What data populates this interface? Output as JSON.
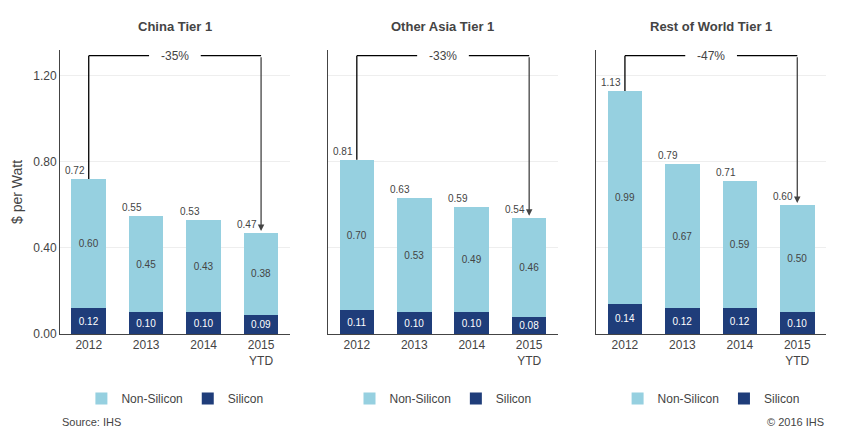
{
  "chart_data": [
    {
      "type": "bar",
      "title": "China Tier 1",
      "ylabel": "$ per Watt",
      "categories": [
        "2012",
        "2013",
        "2014",
        "2015\nYTD"
      ],
      "series": [
        {
          "name": "Silicon",
          "color": "#1f3d7a",
          "values": [
            0.12,
            0.1,
            0.1,
            0.09
          ],
          "value_labels": [
            "0.12",
            "0.10",
            "0.10",
            "0.09"
          ]
        },
        {
          "name": "Non-Silicon",
          "color": "#96d0e0",
          "values": [
            0.6,
            0.45,
            0.43,
            0.38
          ],
          "value_labels": [
            "0.60",
            "0.45",
            "0.43",
            "0.38"
          ]
        }
      ],
      "totals": [
        0.72,
        0.55,
        0.53,
        0.47
      ],
      "total_labels": [
        "0.72",
        "0.55",
        "0.53",
        "0.47"
      ],
      "annotations": [
        "-35%"
      ],
      "ylim": [
        0,
        1.32
      ],
      "yticks": [
        {
          "value": 0,
          "label": "0.00"
        },
        {
          "value": 0.4,
          "label": "0.40"
        },
        {
          "value": 0.8,
          "label": "0.80"
        },
        {
          "value": 1.2,
          "label": "1.20"
        }
      ],
      "stacked": true,
      "data_labels": true,
      "grid": true,
      "legend": "bottom"
    },
    {
      "type": "bar",
      "title": "Other Asia Tier 1",
      "categories": [
        "2012",
        "2013",
        "2014",
        "2015\nYTD"
      ],
      "series": [
        {
          "name": "Silicon",
          "color": "#1f3d7a",
          "values": [
            0.11,
            0.1,
            0.1,
            0.08
          ],
          "value_labels": [
            "0.11",
            "0.10",
            "0.10",
            "0.08"
          ]
        },
        {
          "name": "Non-Silicon",
          "color": "#96d0e0",
          "values": [
            0.7,
            0.53,
            0.49,
            0.46
          ],
          "value_labels": [
            "0.70",
            "0.53",
            "0.49",
            "0.46"
          ]
        }
      ],
      "totals": [
        0.81,
        0.63,
        0.59,
        0.54
      ],
      "total_labels": [
        "0.81",
        "0.63",
        "0.59",
        "0.54"
      ],
      "annotations": [
        "-33%"
      ],
      "ylim": [
        0,
        1.32
      ],
      "yticks": [
        {
          "value": 0,
          "label": "0.00"
        },
        {
          "value": 0.4,
          "label": "0.40"
        },
        {
          "value": 0.8,
          "label": "0.80"
        },
        {
          "value": 1.2,
          "label": "1.20"
        }
      ],
      "stacked": true,
      "data_labels": true,
      "grid": true,
      "legend": "bottom",
      "tick_labels": "x"
    },
    {
      "type": "bar",
      "title": "Rest of World Tier 1",
      "categories": [
        "2012",
        "2013",
        "2014",
        "2015\nYTD"
      ],
      "series": [
        {
          "name": "Silicon",
          "color": "#1f3d7a",
          "values": [
            0.14,
            0.12,
            0.12,
            0.1
          ],
          "value_labels": [
            "0.14",
            "0.12",
            "0.12",
            "0.10"
          ]
        },
        {
          "name": "Non-Silicon",
          "color": "#96d0e0",
          "values": [
            0.99,
            0.67,
            0.59,
            0.5
          ],
          "value_labels": [
            "0.99",
            "0.67",
            "0.59",
            "0.50"
          ]
        }
      ],
      "totals": [
        1.13,
        0.79,
        0.71,
        0.6
      ],
      "total_labels": [
        "1.13",
        "0.79",
        "0.71",
        "0.60"
      ],
      "annotations": [
        "-47%"
      ],
      "ylim": [
        0,
        1.32
      ],
      "yticks": [
        {
          "value": 0,
          "label": "0.00"
        },
        {
          "value": 0.4,
          "label": "0.40"
        },
        {
          "value": 0.8,
          "label": "0.80"
        },
        {
          "value": 1.2,
          "label": "1.20"
        }
      ],
      "stacked": true,
      "data_labels": true,
      "grid": true,
      "legend": "bottom",
      "tick_labels": "x"
    }
  ],
  "annotations": [
    "Source: IHS",
    "© 2016 IHS"
  ]
}
